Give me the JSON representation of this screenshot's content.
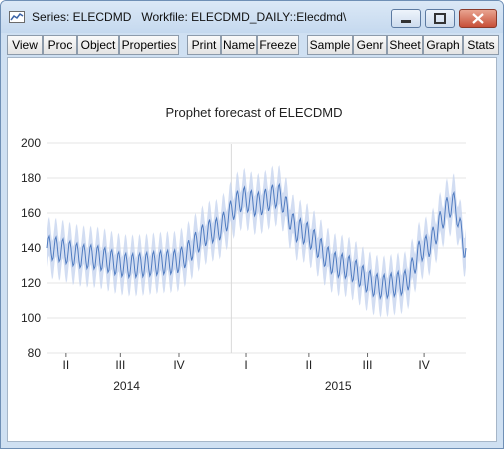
{
  "window": {
    "title": "Series: ELECDMD   Workfile: ELECDMD_DAILY::Elecdmd\\"
  },
  "toolbar": {
    "buttons": [
      "View",
      "Proc",
      "Object",
      "Properties",
      "Print",
      "Name",
      "Freeze",
      "Sample",
      "Genr",
      "Sheet",
      "Graph",
      "Stats"
    ]
  },
  "chart_data": {
    "type": "line",
    "title": "Prophet forecast of ELECDMD",
    "xlabel": "",
    "ylabel": "",
    "ylim": [
      80,
      200
    ],
    "yticks": [
      "200",
      "180",
      "160",
      "140",
      "120",
      "100",
      "80"
    ],
    "x_quarter_ticks": [
      "II",
      "III",
      "IV",
      "I",
      "II",
      "III",
      "IV"
    ],
    "x_year_ticks": [
      "2014",
      "2015"
    ],
    "grid": true,
    "series": [
      {
        "name": "",
        "description_points": [
          [
            0,
            140
          ],
          [
            0.1,
            135
          ],
          [
            0.2,
            130
          ],
          [
            0.3,
            132
          ],
          [
            0.4,
            150
          ],
          [
            0.47,
            168
          ],
          [
            0.5,
            165
          ],
          [
            0.55,
            170
          ],
          [
            0.6,
            150
          ],
          [
            0.7,
            130
          ],
          [
            0.8,
            118
          ],
          [
            0.85,
            120
          ],
          [
            0.9,
            140
          ],
          [
            0.97,
            165
          ],
          [
            1.0,
            140
          ]
        ]
      }
    ],
    "colors": {
      "line": "#4f7bc0",
      "band": "#c3d2ee",
      "grid": "#e6e6e6",
      "divider": "#d8d8d8"
    }
  }
}
